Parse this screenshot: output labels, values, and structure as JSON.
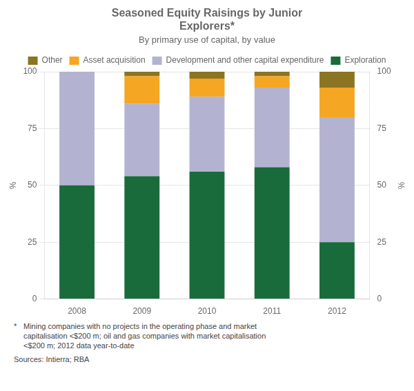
{
  "chart_data": {
    "type": "bar",
    "title": "Seasoned Equity Raisings by Junior\nExplorers*",
    "subtitle": "By primary use of capital, by value",
    "categories": [
      "2008",
      "2009",
      "2010",
      "2011",
      "2012"
    ],
    "series": [
      {
        "name": "Exploration",
        "color": "#1a6b3c",
        "values": [
          50,
          54,
          56,
          58,
          25
        ]
      },
      {
        "name": "Development and other capital expenditure",
        "color": "#b3b3d1",
        "values": [
          50,
          32,
          33,
          35,
          55
        ]
      },
      {
        "name": "Asset acquisition",
        "color": "#f5a623",
        "values": [
          0,
          12,
          8,
          5,
          13
        ]
      },
      {
        "name": "Other",
        "color": "#8b7422",
        "values": [
          0,
          2,
          3,
          2,
          7
        ]
      }
    ],
    "stacked": true,
    "ylabel": "%",
    "y2label": "%",
    "ylim": [
      0,
      100
    ],
    "yticks": [
      0,
      25,
      50,
      75,
      100
    ],
    "y2lim": [
      0,
      100
    ],
    "y2ticks": [
      0,
      25,
      50,
      75,
      100
    ],
    "grid": true,
    "legend": "top",
    "footnote_star": "*",
    "footnote": "Mining companies with no projects in the operating phase and market\ncapitalisation <$200 m; oil and gas companies with market capitalisation\n<$200 m; 2012 data year-to-date",
    "source": "Sources: Intierra; RBA"
  }
}
